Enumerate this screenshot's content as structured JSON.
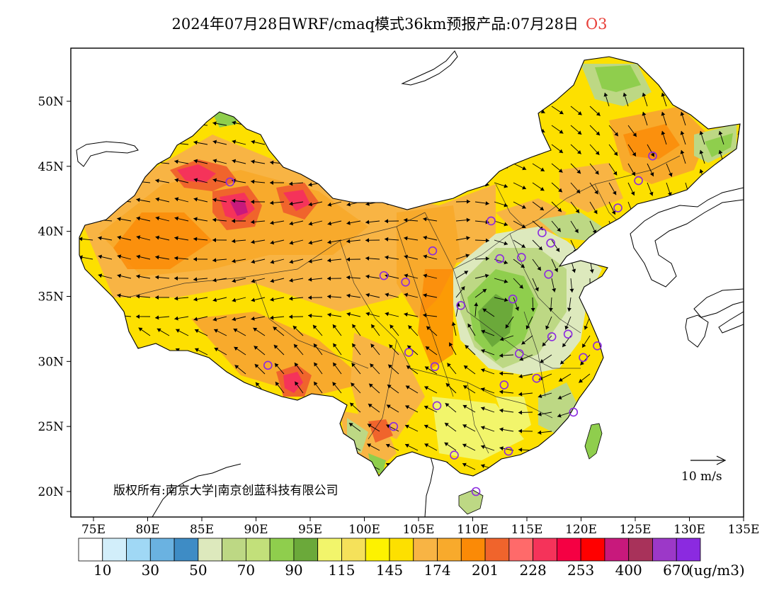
{
  "title": {
    "main": "2024年07月28日WRF/cmaq模式36km预报产品:07月28日",
    "species": "O3"
  },
  "map": {
    "lat_labels": [
      "50N",
      "45N",
      "40N",
      "35N",
      "30N",
      "25N",
      "20N"
    ],
    "lon_labels": [
      "75E",
      "80E",
      "85E",
      "90E",
      "95E",
      "100E",
      "105E",
      "110E",
      "115E",
      "120E",
      "125E",
      "130E",
      "135E"
    ],
    "copyright": "版权所有:南京大学|南京创蓝科技有限公司",
    "wind_scale": "10 m/s"
  },
  "legend": {
    "colors": [
      "#ffffff",
      "#d2eefa",
      "#a0d8f5",
      "#6ab2e1",
      "#3e8cc5",
      "#dde9bd",
      "#bdd884",
      "#c2e07a",
      "#8fce4d",
      "#6ba93a",
      "#f2f56b",
      "#f5e15a",
      "#fdf200",
      "#fde000",
      "#f8b444",
      "#f8aa2c",
      "#fb8a06",
      "#f0642c",
      "#ff6a6a",
      "#f5335a",
      "#f50043",
      "#ff0000",
      "#c8197c",
      "#a8325a",
      "#9c38c8",
      "#8b2ae0"
    ],
    "labels": [
      "10",
      "30",
      "50",
      "70",
      "90",
      "115",
      "145",
      "174",
      "201",
      "228",
      "253",
      "400",
      "670"
    ],
    "unit": "(ug/m3)"
  }
}
